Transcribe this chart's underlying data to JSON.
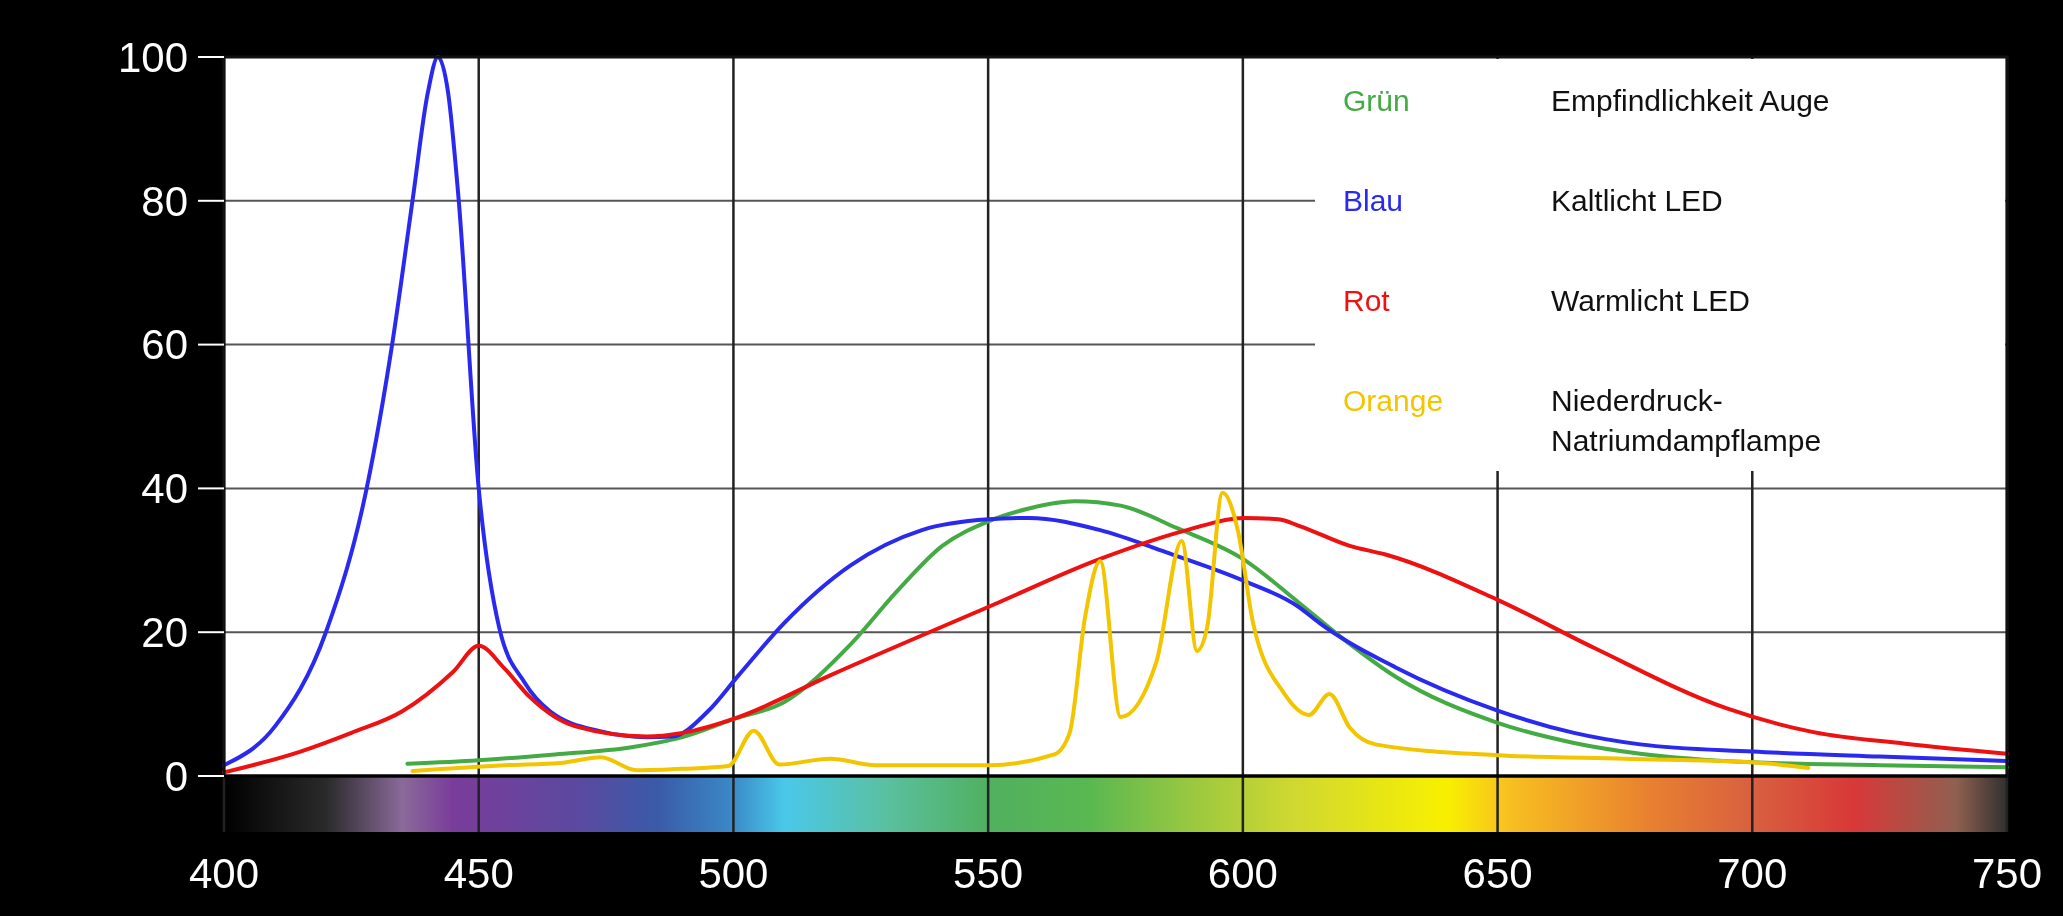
{
  "chart_data": {
    "type": "line",
    "xlim": [
      400,
      750
    ],
    "ylim": [
      0,
      100
    ],
    "xticks": [
      400,
      450,
      500,
      550,
      600,
      650,
      700,
      750
    ],
    "yticks": [
      0,
      20,
      40,
      60,
      80,
      100
    ],
    "grid": true,
    "legend": "top right",
    "annotations": [
      "Empfindlichkeit Auge",
      "Kaltlicht LED",
      "Warmlicht LED",
      "Niederdruck-Natriumdampflampe"
    ],
    "series": [
      {
        "name": "Grün",
        "color": "#44aa44",
        "x": [
          436,
          450,
          465,
          480,
          490,
          500,
          510,
          523,
          532,
          541,
          550,
          558,
          567,
          576,
          587,
          600,
          611,
          620,
          630,
          650,
          665,
          678,
          700,
          725,
          750
        ],
        "values": [
          1.7,
          2.2,
          3,
          4,
          5.4,
          7.9,
          10.3,
          18.3,
          25.6,
          32,
          35.4,
          37.2,
          38.2,
          37.6,
          34.5,
          30.2,
          24.1,
          18.9,
          13.8,
          7.4,
          4.6,
          3.1,
          1.9,
          1.5,
          1.2
        ]
      },
      {
        "name": "Blau",
        "color": "#2a2aee",
        "x": [
          400,
          410,
          420,
          428,
          433,
          437,
          440,
          442,
          444,
          446,
          450,
          454,
          459,
          464,
          474,
          483,
          488,
          495,
          501,
          510,
          523,
          537,
          550,
          558,
          572,
          585,
          600,
          611,
          615,
          630,
          650,
          665,
          678,
          700,
          725,
          750
        ],
        "values": [
          1.5,
          6.9,
          20,
          40,
          60,
          80,
          95,
          100,
          95,
          80.7,
          40,
          20.7,
          13,
          9,
          6.2,
          5.4,
          5.5,
          9,
          14,
          21.3,
          29.3,
          34.2,
          35.7,
          35.9,
          34.2,
          31.1,
          27.2,
          23.5,
          21.3,
          15.1,
          9.1,
          6,
          4.4,
          3.4,
          2.7,
          2.1
        ]
      },
      {
        "name": "Rot",
        "color": "#ee1111",
        "x": [
          400,
          415,
          425,
          435,
          445,
          450,
          455,
          460,
          469,
          483,
          490,
          501,
          519,
          550,
          572,
          589,
          600,
          607,
          611,
          621,
          628,
          650,
          669,
          695,
          712,
          730,
          750
        ],
        "values": [
          0.5,
          3.4,
          6,
          9,
          14.5,
          18.1,
          15,
          11,
          6.9,
          5.5,
          6,
          8.2,
          14,
          23.5,
          30.2,
          34.2,
          35.9,
          35.7,
          34.8,
          32,
          30.8,
          24.5,
          17.8,
          9.4,
          6.1,
          4.5,
          3.1
        ]
      },
      {
        "name": "Orange",
        "color": "#f2c500",
        "x": [
          437,
          455,
          466,
          474,
          481,
          490,
          499,
          504,
          509,
          519,
          528,
          550,
          563,
          566,
          569,
          572,
          576,
          583,
          588,
          591,
          593,
          596,
          599,
          602,
          608,
          613,
          617,
          621,
          626,
          650,
          675,
          700,
          711
        ],
        "values": [
          0.7,
          1.5,
          1.8,
          2.6,
          0.8,
          1,
          1.4,
          6.3,
          1.6,
          2.4,
          1.5,
          1.5,
          3,
          6,
          22,
          29.9,
          8.2,
          15.8,
          32.7,
          17.4,
          20.7,
          39.4,
          34.2,
          21.3,
          11.6,
          8.5,
          11.4,
          6.7,
          4.4,
          2.9,
          2.4,
          1.9,
          1.1
        ]
      }
    ]
  }
}
